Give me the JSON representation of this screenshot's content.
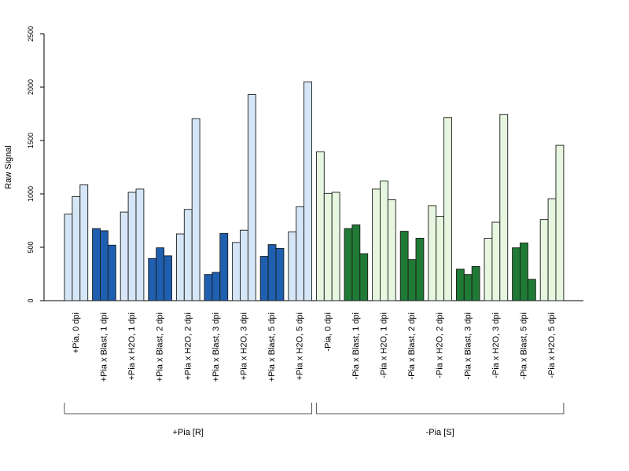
{
  "chart_data": {
    "type": "bar",
    "ylabel": "Raw Signal",
    "xlabel": "",
    "ylim": [
      0,
      2500
    ],
    "yticks": [
      0,
      500,
      1000,
      1500,
      2000,
      2500
    ],
    "grid": false,
    "legend": "none",
    "colors": {
      "light_blue": "#d6e6f7",
      "dark_blue": "#1f5fb0",
      "light_green": "#e6f6df",
      "dark_green": "#207a35"
    },
    "categories": [
      {
        "label": "+Pia, 0 dpi",
        "color": "light_blue",
        "values": [
          810,
          975,
          1085
        ]
      },
      {
        "label": "+Pia x Blast, 1 dpi",
        "color": "dark_blue",
        "values": [
          675,
          655,
          520
        ]
      },
      {
        "label": "+Pia x H2O, 1 dpi",
        "color": "light_blue",
        "values": [
          830,
          1015,
          1045
        ]
      },
      {
        "label": "+Pia x Blast, 2 dpi",
        "color": "dark_blue",
        "values": [
          395,
          495,
          420
        ]
      },
      {
        "label": "+Pia x H2O, 2 dpi",
        "color": "light_blue",
        "values": [
          625,
          855,
          1705
        ]
      },
      {
        "label": "+Pia x Blast, 3 dpi",
        "color": "dark_blue",
        "values": [
          245,
          265,
          630
        ]
      },
      {
        "label": "+Pia x H2O, 3 dpi",
        "color": "light_blue",
        "values": [
          545,
          660,
          1930
        ]
      },
      {
        "label": "+Pia x Blast, 5 dpi",
        "color": "dark_blue",
        "values": [
          415,
          525,
          490
        ]
      },
      {
        "label": "+Pia x H2O, 5 dpi",
        "color": "light_blue",
        "values": [
          645,
          880,
          2050
        ]
      },
      {
        "label": "-Pia, 0 dpi",
        "color": "light_green",
        "values": [
          1395,
          1005,
          1015
        ]
      },
      {
        "label": "-Pia x Blast, 1 dpi",
        "color": "dark_green",
        "values": [
          675,
          710,
          440
        ]
      },
      {
        "label": "-Pia x H2O, 1 dpi",
        "color": "light_green",
        "values": [
          1045,
          1120,
          945
        ]
      },
      {
        "label": "-Pia x Blast, 2 dpi",
        "color": "dark_green",
        "values": [
          650,
          385,
          585
        ]
      },
      {
        "label": "-Pia x H2O, 2 dpi",
        "color": "light_green",
        "values": [
          890,
          790,
          1715
        ]
      },
      {
        "label": "-Pia x Blast, 3 dpi",
        "color": "dark_green",
        "values": [
          295,
          245,
          320
        ]
      },
      {
        "label": "-Pia x H2O, 3 dpi",
        "color": "light_green",
        "values": [
          585,
          735,
          1745
        ]
      },
      {
        "label": "-Pia x Blast, 5 dpi",
        "color": "dark_green",
        "values": [
          495,
          540,
          200
        ]
      },
      {
        "label": "-Pia x H2O, 5 dpi",
        "color": "light_green",
        "values": [
          760,
          955,
          1455
        ]
      }
    ],
    "groups": [
      {
        "label": "+Pia [R]",
        "from": 0,
        "to": 8
      },
      {
        "label": "-Pia [S]",
        "from": 9,
        "to": 17
      }
    ]
  }
}
